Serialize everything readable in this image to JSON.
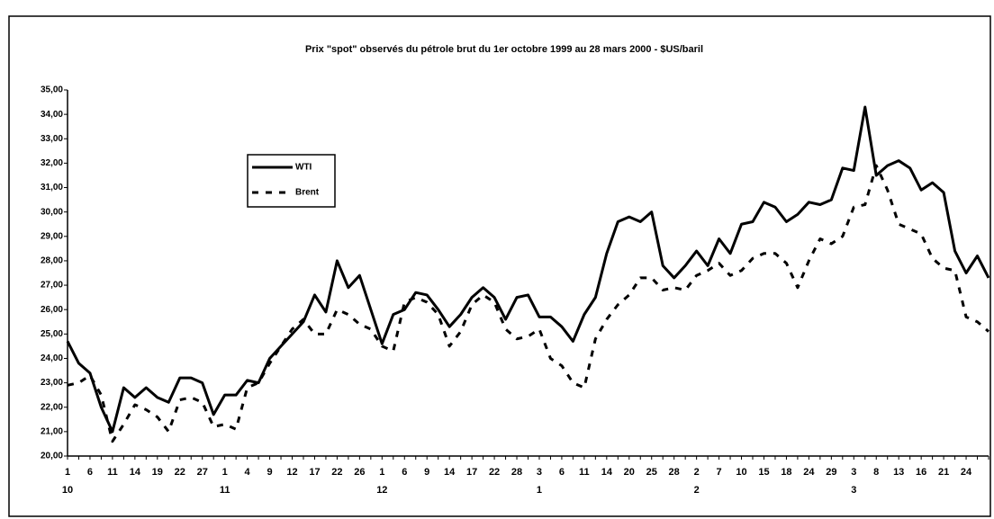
{
  "chart_data": {
    "type": "line",
    "title": "Prix \"spot\" observés du pétrole brut du 1er octobre 1999 au 28 mars 2000 - $US/baril",
    "categories": [
      "1",
      null,
      "6",
      null,
      "11",
      null,
      "14",
      null,
      "19",
      null,
      "22",
      null,
      "27",
      null,
      "1",
      null,
      "4",
      null,
      "9",
      null,
      "12",
      null,
      "17",
      null,
      "22",
      null,
      "26",
      null,
      "1",
      null,
      "6",
      null,
      "9",
      null,
      "14",
      null,
      "17",
      null,
      "22",
      null,
      "28",
      null,
      "3",
      null,
      "6",
      null,
      "11",
      null,
      "14",
      null,
      "20",
      null,
      "25",
      null,
      "28",
      null,
      "2",
      null,
      "7",
      null,
      "10",
      null,
      "15",
      null,
      "18",
      null,
      "24",
      null,
      "29",
      null,
      "3",
      null,
      "8",
      null,
      "13",
      null,
      "16",
      null,
      "21",
      null,
      "24",
      null,
      null
    ],
    "months": [
      "10",
      null,
      null,
      null,
      null,
      null,
      null,
      null,
      null,
      null,
      null,
      null,
      null,
      null,
      "11",
      null,
      null,
      null,
      null,
      null,
      null,
      null,
      null,
      null,
      null,
      null,
      null,
      null,
      "12",
      null,
      null,
      null,
      null,
      null,
      null,
      null,
      null,
      null,
      null,
      null,
      null,
      null,
      "1",
      null,
      null,
      null,
      null,
      null,
      null,
      null,
      null,
      null,
      null,
      null,
      null,
      null,
      "2",
      null,
      null,
      null,
      null,
      null,
      null,
      null,
      null,
      null,
      null,
      null,
      null,
      null,
      "3",
      null,
      null,
      null,
      null,
      null,
      null,
      null,
      null,
      null,
      null,
      null,
      null
    ],
    "series": [
      {
        "name": "WTI",
        "color": "#000000",
        "dash": false,
        "values": [
          24.7,
          23.8,
          23.4,
          22.0,
          21.0,
          22.8,
          22.4,
          22.8,
          22.4,
          22.2,
          23.2,
          23.2,
          23.0,
          21.7,
          22.5,
          22.5,
          23.1,
          23.0,
          24.0,
          24.5,
          25.0,
          25.5,
          26.6,
          25.9,
          28.0,
          26.9,
          27.4,
          26.0,
          24.6,
          25.8,
          26.0,
          26.7,
          26.6,
          26.0,
          25.3,
          25.8,
          26.5,
          26.9,
          26.5,
          25.6,
          26.5,
          26.6,
          25.7,
          25.7,
          25.3,
          24.7,
          25.8,
          26.5,
          28.3,
          29.6,
          29.8,
          29.6,
          30.0,
          27.8,
          27.3,
          27.8,
          28.4,
          27.8,
          28.9,
          28.3,
          29.5,
          29.6,
          30.4,
          30.2,
          29.6,
          29.9,
          30.4,
          30.3,
          30.5,
          31.8,
          31.7,
          34.3,
          31.5,
          31.9,
          32.1,
          31.8,
          30.9,
          31.2,
          30.8,
          28.4,
          27.5,
          28.2,
          27.3
        ]
      },
      {
        "name": "Brent",
        "color": "#000000",
        "dash": true,
        "values": [
          22.9,
          23.0,
          23.3,
          22.5,
          20.6,
          21.3,
          22.1,
          21.9,
          21.6,
          21.0,
          22.3,
          22.4,
          22.2,
          21.2,
          21.3,
          21.1,
          22.8,
          23.0,
          23.8,
          24.5,
          25.2,
          25.6,
          25.0,
          25.0,
          26.0,
          25.8,
          25.4,
          25.2,
          24.5,
          24.3,
          26.3,
          26.5,
          26.3,
          25.8,
          24.5,
          25.1,
          26.2,
          26.6,
          26.3,
          25.2,
          24.8,
          24.9,
          25.2,
          24.0,
          23.7,
          23.0,
          22.8,
          24.8,
          25.6,
          26.2,
          26.6,
          27.3,
          27.3,
          26.8,
          26.9,
          26.8,
          27.4,
          27.6,
          27.9,
          27.4,
          27.6,
          28.1,
          28.3,
          28.3,
          27.9,
          26.9,
          28.0,
          28.9,
          28.7,
          29.0,
          30.2,
          30.3,
          31.9,
          30.9,
          29.5,
          29.3,
          29.1,
          28.1,
          27.7,
          27.6,
          25.7,
          25.5,
          25.1
        ]
      }
    ],
    "ylim": [
      20,
      35
    ],
    "yticks": [
      {
        "value": 20,
        "label": "20,00"
      },
      {
        "value": 21,
        "label": "21,00"
      },
      {
        "value": 22,
        "label": "22,00"
      },
      {
        "value": 23,
        "label": "23,00"
      },
      {
        "value": 24,
        "label": "24,00"
      },
      {
        "value": 25,
        "label": "25,00"
      },
      {
        "value": 26,
        "label": "26,00"
      },
      {
        "value": 27,
        "label": "27,00"
      },
      {
        "value": 28,
        "label": "28,00"
      },
      {
        "value": 29,
        "label": "29,00"
      },
      {
        "value": 30,
        "label": "30,00"
      },
      {
        "value": 31,
        "label": "31,00"
      },
      {
        "value": 32,
        "label": "32,00"
      },
      {
        "value": 33,
        "label": "33,00"
      },
      {
        "value": 34,
        "label": "34,00"
      },
      {
        "value": 35,
        "label": "35,00"
      }
    ],
    "grid": false
  }
}
